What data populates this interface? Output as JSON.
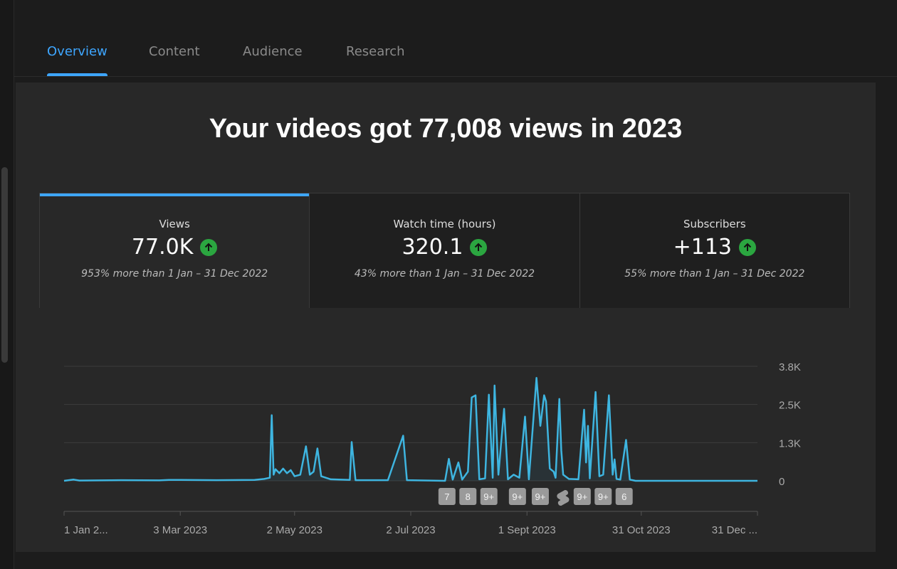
{
  "tabs": [
    {
      "label": "Overview",
      "active": true
    },
    {
      "label": "Content"
    },
    {
      "label": "Audience"
    },
    {
      "label": "Research"
    }
  ],
  "headline": "Your videos got 77,008 views in 2023",
  "metrics": [
    {
      "label": "Views",
      "value": "77.0K",
      "comparison": "953% more than 1 Jan – 31 Dec 2022",
      "trend": "up"
    },
    {
      "label": "Watch time (hours)",
      "value": "320.1",
      "comparison": "43% more than 1 Jan – 31 Dec 2022",
      "trend": "up"
    },
    {
      "label": "Subscribers",
      "value": "+113",
      "comparison": "55% more than 1 Jan – 31 Dec 2022",
      "trend": "up"
    }
  ],
  "colors": {
    "accent": "#3ea6ff",
    "line": "#3eb5e0",
    "up": "#2ba640"
  },
  "chart_data": {
    "type": "line",
    "x_range": [
      "2023-01-01",
      "2023-12-31"
    ],
    "ylim": [
      0,
      3750
    ],
    "y_ticks": [
      {
        "value": 0,
        "label": "0"
      },
      {
        "value": 1250,
        "label": "1.3K"
      },
      {
        "value": 2500,
        "label": "2.5K"
      },
      {
        "value": 3750,
        "label": "3.8K"
      }
    ],
    "x_ticks": [
      {
        "date": "2023-01-01",
        "label": "1 Jan 2..."
      },
      {
        "date": "2023-03-03",
        "label": "3 Mar 2023"
      },
      {
        "date": "2023-05-02",
        "label": "2 May 2023"
      },
      {
        "date": "2023-07-02",
        "label": "2 Jul 2023"
      },
      {
        "date": "2023-09-01",
        "label": "1 Sept 2023"
      },
      {
        "date": "2023-10-31",
        "label": "31 Oct 2023"
      },
      {
        "date": "2023-12-31",
        "label": "31 Dec ..."
      }
    ],
    "grid": true,
    "series": [
      {
        "points": [
          [
            "2023-01-01",
            0
          ],
          [
            "2023-01-06",
            40
          ],
          [
            "2023-01-09",
            10
          ],
          [
            "2023-01-31",
            20
          ],
          [
            "2023-02-20",
            15
          ],
          [
            "2023-02-25",
            30
          ],
          [
            "2023-03-22",
            20
          ],
          [
            "2023-04-11",
            30
          ],
          [
            "2023-04-16",
            60
          ],
          [
            "2023-04-19",
            100
          ],
          [
            "2023-04-20",
            2150
          ],
          [
            "2023-04-21",
            200
          ],
          [
            "2023-04-22",
            380
          ],
          [
            "2023-04-24",
            250
          ],
          [
            "2023-04-26",
            400
          ],
          [
            "2023-04-28",
            250
          ],
          [
            "2023-04-30",
            350
          ],
          [
            "2023-05-02",
            150
          ],
          [
            "2023-05-05",
            200
          ],
          [
            "2023-05-08",
            1130
          ],
          [
            "2023-05-10",
            200
          ],
          [
            "2023-05-12",
            300
          ],
          [
            "2023-05-14",
            1060
          ],
          [
            "2023-05-16",
            150
          ],
          [
            "2023-05-21",
            50
          ],
          [
            "2023-05-31",
            30
          ],
          [
            "2023-06-01",
            1270
          ],
          [
            "2023-06-03",
            20
          ],
          [
            "2023-06-20",
            20
          ],
          [
            "2023-06-28",
            1480
          ],
          [
            "2023-06-30",
            20
          ],
          [
            "2023-07-20",
            0
          ],
          [
            "2023-07-22",
            720
          ],
          [
            "2023-07-24",
            40
          ],
          [
            "2023-07-27",
            600
          ],
          [
            "2023-07-29",
            40
          ],
          [
            "2023-08-01",
            300
          ],
          [
            "2023-08-03",
            2730
          ],
          [
            "2023-08-05",
            2800
          ],
          [
            "2023-08-07",
            50
          ],
          [
            "2023-08-10",
            80
          ],
          [
            "2023-08-12",
            2820
          ],
          [
            "2023-08-14",
            100
          ],
          [
            "2023-08-15",
            3120
          ],
          [
            "2023-08-17",
            200
          ],
          [
            "2023-08-20",
            2360
          ],
          [
            "2023-08-22",
            50
          ],
          [
            "2023-08-25",
            200
          ],
          [
            "2023-08-28",
            100
          ],
          [
            "2023-08-31",
            2100
          ],
          [
            "2023-09-02",
            50
          ],
          [
            "2023-09-06",
            3370
          ],
          [
            "2023-09-08",
            1800
          ],
          [
            "2023-09-10",
            2800
          ],
          [
            "2023-09-11",
            2600
          ],
          [
            "2023-09-13",
            400
          ],
          [
            "2023-09-15",
            300
          ],
          [
            "2023-09-16",
            100
          ],
          [
            "2023-09-18",
            2680
          ],
          [
            "2023-09-19",
            1000
          ],
          [
            "2023-09-20",
            200
          ],
          [
            "2023-09-23",
            60
          ],
          [
            "2023-09-28",
            50
          ],
          [
            "2023-10-01",
            2330
          ],
          [
            "2023-10-02",
            600
          ],
          [
            "2023-10-03",
            1800
          ],
          [
            "2023-10-04",
            80
          ],
          [
            "2023-10-07",
            2910
          ],
          [
            "2023-10-09",
            150
          ],
          [
            "2023-10-11",
            200
          ],
          [
            "2023-10-14",
            2800
          ],
          [
            "2023-10-16",
            200
          ],
          [
            "2023-10-17",
            700
          ],
          [
            "2023-10-18",
            60
          ],
          [
            "2023-10-20",
            40
          ],
          [
            "2023-10-23",
            1340
          ],
          [
            "2023-10-25",
            40
          ],
          [
            "2023-10-28",
            0
          ],
          [
            "2023-12-31",
            0
          ]
        ]
      }
    ],
    "video_markers": [
      {
        "date": "2023-07-21",
        "label": "7"
      },
      {
        "date": "2023-08-01",
        "label": "8"
      },
      {
        "date": "2023-08-12",
        "label": "9+"
      },
      {
        "date": "2023-08-27",
        "label": "9+"
      },
      {
        "date": "2023-09-08",
        "label": "9+"
      },
      {
        "date": "2023-09-19",
        "label": "",
        "icon": "shorts-icon"
      },
      {
        "date": "2023-09-30",
        "label": "9+"
      },
      {
        "date": "2023-10-11",
        "label": "9+"
      },
      {
        "date": "2023-10-22",
        "label": "6"
      }
    ]
  }
}
